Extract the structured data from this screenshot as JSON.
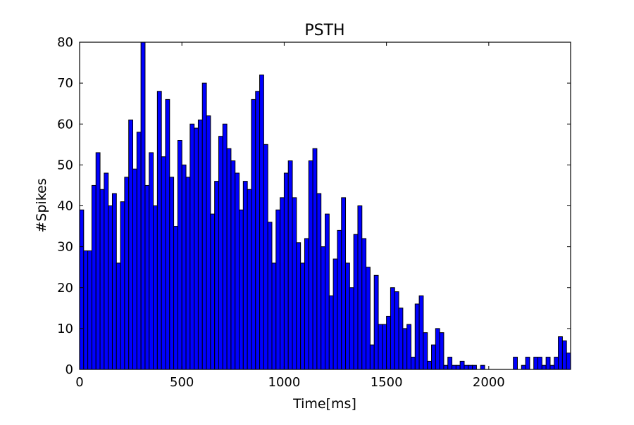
{
  "chart_data": {
    "type": "bar",
    "title": "PSTH",
    "xlabel": "Time[ms]",
    "ylabel": "#Spikes",
    "xlim": [
      0,
      2400
    ],
    "ylim": [
      0,
      80
    ],
    "xticks": [
      0,
      500,
      1000,
      1500,
      2000
    ],
    "yticks": [
      0,
      10,
      20,
      30,
      40,
      50,
      60,
      70,
      80
    ],
    "grid": false,
    "bin_width": 20,
    "bar_color": "#0000ff",
    "edge_color": "#000000",
    "x": [
      0,
      20,
      40,
      60,
      80,
      100,
      120,
      140,
      160,
      180,
      200,
      220,
      240,
      260,
      280,
      300,
      320,
      340,
      360,
      380,
      400,
      420,
      440,
      460,
      480,
      500,
      520,
      540,
      560,
      580,
      600,
      620,
      640,
      660,
      680,
      700,
      720,
      740,
      760,
      780,
      800,
      820,
      840,
      860,
      880,
      900,
      920,
      940,
      960,
      980,
      1000,
      1020,
      1040,
      1060,
      1080,
      1100,
      1120,
      1140,
      1160,
      1180,
      1200,
      1220,
      1240,
      1260,
      1280,
      1300,
      1320,
      1340,
      1360,
      1380,
      1400,
      1420,
      1440,
      1460,
      1480,
      1500,
      1520,
      1540,
      1560,
      1580,
      1600,
      1620,
      1640,
      1660,
      1680,
      1700,
      1720,
      1740,
      1760,
      1780,
      1800,
      1820,
      1840,
      1860,
      1880,
      1900,
      1920,
      1940,
      1960,
      1980,
      2000,
      2020,
      2040,
      2060,
      2080,
      2100,
      2120,
      2140,
      2160,
      2180,
      2200,
      2220,
      2240,
      2260,
      2280,
      2300,
      2320,
      2340,
      2360,
      2380
    ],
    "values": [
      39,
      29,
      29,
      45,
      53,
      44,
      48,
      40,
      43,
      26,
      41,
      47,
      61,
      49,
      58,
      80,
      45,
      53,
      40,
      68,
      52,
      66,
      47,
      35,
      56,
      50,
      47,
      60,
      59,
      61,
      70,
      62,
      38,
      46,
      57,
      60,
      54,
      51,
      48,
      39,
      46,
      44,
      66,
      68,
      72,
      55,
      36,
      26,
      39,
      42,
      48,
      51,
      42,
      31,
      26,
      32,
      51,
      54,
      43,
      30,
      38,
      18,
      27,
      34,
      42,
      26,
      20,
      33,
      40,
      32,
      25,
      6,
      23,
      11,
      11,
      13,
      20,
      19,
      15,
      10,
      11,
      3,
      16,
      18,
      9,
      2,
      6,
      10,
      9,
      1,
      3,
      1,
      1,
      2,
      1,
      1,
      1,
      0,
      1,
      0,
      0,
      0,
      0,
      0,
      0,
      0,
      3,
      0,
      1,
      3,
      0,
      3,
      3,
      1,
      3,
      1,
      3,
      8,
      7,
      4
    ]
  }
}
